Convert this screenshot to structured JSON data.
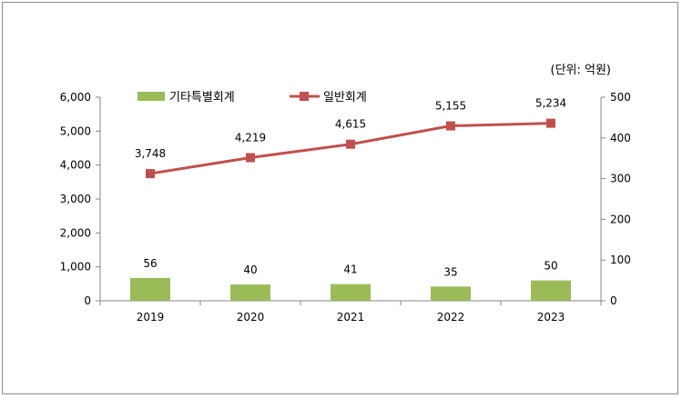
{
  "chart_data": {
    "type": "bar",
    "unit_label": "(단위: 억원)",
    "categories": [
      "2019",
      "2020",
      "2021",
      "2022",
      "2023"
    ],
    "series": [
      {
        "name": "기타특별회계",
        "type": "bar",
        "axis": "right",
        "color": "#9bbb59",
        "values": [
          56,
          40,
          41,
          35,
          50
        ],
        "labels": [
          "56",
          "40",
          "41",
          "35",
          "50"
        ]
      },
      {
        "name": "일반회계",
        "type": "line",
        "axis": "left",
        "color": "#c0504d",
        "values": [
          3748,
          4219,
          4615,
          5155,
          5234
        ],
        "labels": [
          "3,748",
          "4,219",
          "4,615",
          "5,155",
          "5,234"
        ]
      }
    ],
    "y_left": {
      "min": 0,
      "max": 6000,
      "ticks": [
        "0",
        "1,000",
        "2,000",
        "3,000",
        "4,000",
        "5,000",
        "6,000"
      ]
    },
    "y_right": {
      "min": 0,
      "max": 500,
      "ticks": [
        "0",
        "100",
        "200",
        "300",
        "400",
        "500"
      ]
    },
    "legend": "top-left",
    "grid": false
  }
}
